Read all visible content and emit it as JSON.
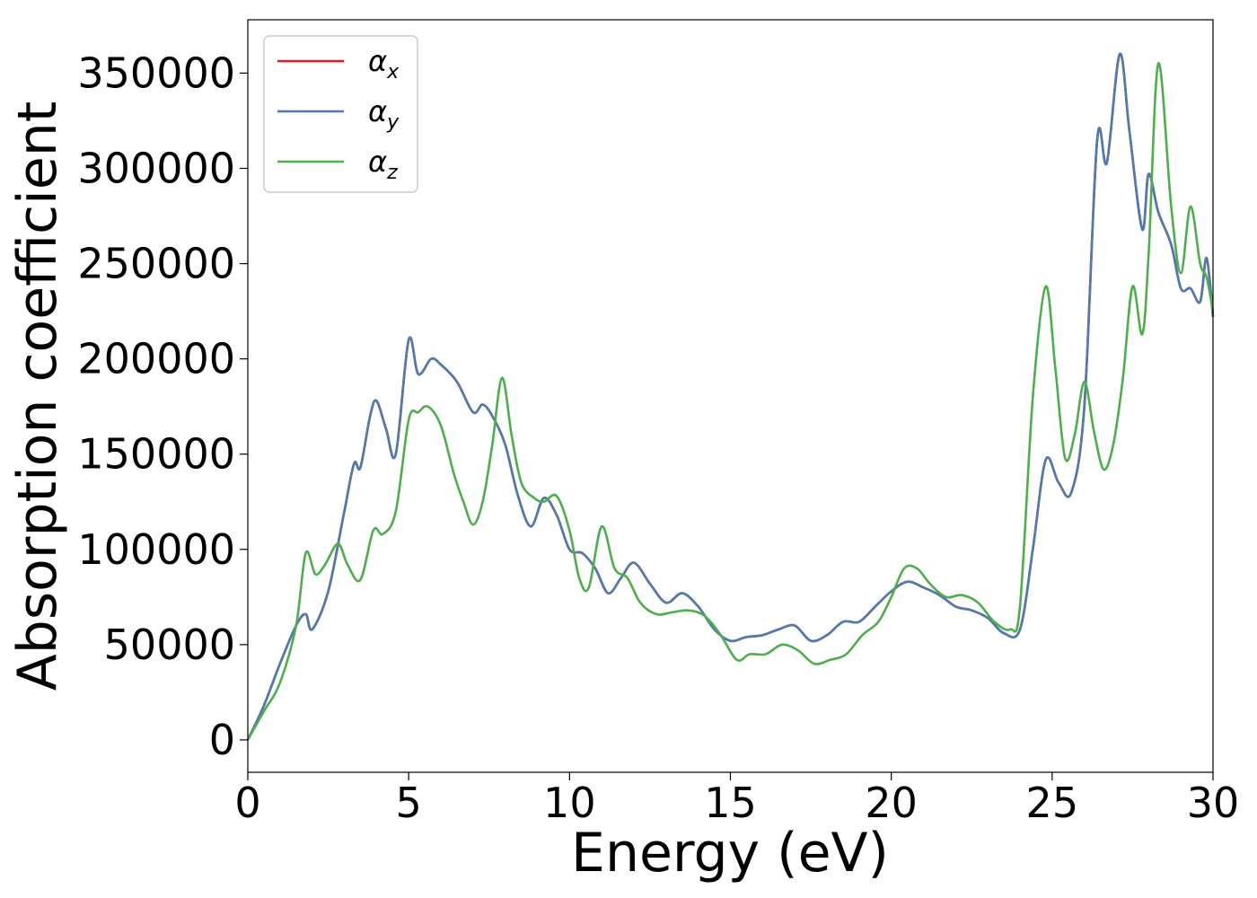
{
  "chart_data": {
    "type": "line",
    "xlabel": "Energy (eV)",
    "ylabel": "Absorption coefficient",
    "xlim": [
      0,
      30
    ],
    "ylim": [
      -17000,
      378000
    ],
    "x_ticks": [
      0,
      5,
      10,
      15,
      20,
      25,
      30
    ],
    "y_ticks": [
      0,
      50000,
      100000,
      150000,
      200000,
      250000,
      300000,
      350000
    ],
    "grid": false,
    "legend_position": "top-left",
    "series": [
      {
        "name": "αx",
        "legend_base": "α",
        "legend_sub": "x",
        "color": "#e41a1c",
        "x": [
          0,
          0.5,
          1.0,
          1.5,
          1.8,
          2.0,
          2.5,
          3.0,
          3.3,
          3.5,
          3.8,
          4.0,
          4.3,
          4.6,
          5.0,
          5.3,
          5.7,
          6.0,
          6.5,
          7.0,
          7.3,
          7.6,
          8.0,
          8.4,
          8.8,
          9.2,
          9.6,
          10.0,
          10.4,
          10.8,
          11.2,
          11.6,
          12.0,
          12.5,
          13.0,
          13.5,
          14.0,
          14.5,
          15.0,
          15.5,
          16.0,
          16.5,
          17.0,
          17.5,
          18.0,
          18.5,
          19.0,
          19.5,
          20.0,
          20.5,
          21.0,
          21.5,
          22.0,
          22.5,
          23.0,
          23.5,
          24.0,
          24.4,
          24.8,
          25.2,
          25.6,
          26.0,
          26.4,
          26.7,
          27.1,
          27.4,
          27.8,
          28.0,
          28.3,
          28.7,
          29.0,
          29.3,
          29.6,
          29.8,
          30.0
        ],
        "y": [
          0,
          18000,
          40000,
          60000,
          66000,
          58000,
          78000,
          120000,
          145000,
          143000,
          170000,
          178000,
          163000,
          150000,
          210000,
          192000,
          200000,
          197000,
          188000,
          172000,
          176000,
          170000,
          155000,
          128000,
          112000,
          127000,
          118000,
          100000,
          98000,
          90000,
          77000,
          85000,
          93000,
          82000,
          72000,
          77000,
          70000,
          58000,
          52000,
          54000,
          55000,
          58000,
          60000,
          52000,
          55000,
          62000,
          62000,
          70000,
          78000,
          83000,
          80000,
          76000,
          70000,
          68000,
          64000,
          56000,
          58000,
          100000,
          147000,
          135000,
          130000,
          175000,
          315000,
          303000,
          360000,
          320000,
          268000,
          297000,
          277000,
          260000,
          237000,
          237000,
          230000,
          253000,
          222000
        ]
      },
      {
        "name": "αy",
        "legend_base": "α",
        "legend_sub": "y",
        "color": "#4b7bb2",
        "x": [
          0,
          0.5,
          1.0,
          1.5,
          1.8,
          2.0,
          2.5,
          3.0,
          3.3,
          3.5,
          3.8,
          4.0,
          4.3,
          4.6,
          5.0,
          5.3,
          5.7,
          6.0,
          6.5,
          7.0,
          7.3,
          7.6,
          8.0,
          8.4,
          8.8,
          9.2,
          9.6,
          10.0,
          10.4,
          10.8,
          11.2,
          11.6,
          12.0,
          12.5,
          13.0,
          13.5,
          14.0,
          14.5,
          15.0,
          15.5,
          16.0,
          16.5,
          17.0,
          17.5,
          18.0,
          18.5,
          19.0,
          19.5,
          20.0,
          20.5,
          21.0,
          21.5,
          22.0,
          22.5,
          23.0,
          23.5,
          24.0,
          24.4,
          24.8,
          25.2,
          25.6,
          26.0,
          26.4,
          26.7,
          27.1,
          27.4,
          27.8,
          28.0,
          28.3,
          28.7,
          29.0,
          29.3,
          29.6,
          29.8,
          30.0
        ],
        "y": [
          0,
          18000,
          40000,
          60000,
          66000,
          58000,
          78000,
          120000,
          145000,
          143000,
          170000,
          178000,
          163000,
          150000,
          210000,
          192000,
          200000,
          197000,
          188000,
          172000,
          176000,
          170000,
          155000,
          128000,
          112000,
          127000,
          118000,
          100000,
          98000,
          90000,
          77000,
          85000,
          93000,
          82000,
          72000,
          77000,
          70000,
          58000,
          52000,
          54000,
          55000,
          58000,
          60000,
          52000,
          55000,
          62000,
          62000,
          70000,
          78000,
          83000,
          80000,
          76000,
          70000,
          68000,
          64000,
          56000,
          58000,
          100000,
          147000,
          135000,
          130000,
          175000,
          315000,
          303000,
          360000,
          320000,
          268000,
          297000,
          277000,
          260000,
          237000,
          237000,
          230000,
          253000,
          222000
        ]
      },
      {
        "name": "αz",
        "legend_base": "α",
        "legend_sub": "z",
        "color": "#4daf4a",
        "x": [
          0,
          0.5,
          1.0,
          1.5,
          1.8,
          2.1,
          2.4,
          2.8,
          3.1,
          3.5,
          3.9,
          4.2,
          4.6,
          5.0,
          5.3,
          5.6,
          6.0,
          6.4,
          6.7,
          7.0,
          7.3,
          7.6,
          7.9,
          8.2,
          8.5,
          8.9,
          9.2,
          9.6,
          10.0,
          10.3,
          10.6,
          11.0,
          11.4,
          11.8,
          12.2,
          12.7,
          13.2,
          13.7,
          14.2,
          14.7,
          15.2,
          15.6,
          16.1,
          16.6,
          17.1,
          17.6,
          18.1,
          18.6,
          19.1,
          19.6,
          20.0,
          20.4,
          20.8,
          21.2,
          21.7,
          22.2,
          22.7,
          23.2,
          23.7,
          24.0,
          24.4,
          24.8,
          25.1,
          25.4,
          25.7,
          26.0,
          26.3,
          26.6,
          26.9,
          27.2,
          27.5,
          27.8,
          28.0,
          28.3,
          28.7,
          29.0,
          29.3,
          29.6,
          29.8,
          30.0
        ],
        "y": [
          0,
          15000,
          30000,
          60000,
          98000,
          87000,
          92000,
          103000,
          92000,
          84000,
          110000,
          108000,
          120000,
          168000,
          172000,
          175000,
          165000,
          140000,
          125000,
          113000,
          125000,
          155000,
          190000,
          160000,
          135000,
          127000,
          125000,
          128000,
          110000,
          85000,
          80000,
          112000,
          90000,
          85000,
          72000,
          66000,
          67000,
          68000,
          65000,
          55000,
          42000,
          45000,
          45000,
          50000,
          47000,
          40000,
          42000,
          45000,
          55000,
          62000,
          75000,
          90000,
          90000,
          82000,
          75000,
          76000,
          72000,
          62000,
          58000,
          70000,
          180000,
          238000,
          195000,
          148000,
          160000,
          188000,
          162000,
          142000,
          155000,
          190000,
          238000,
          213000,
          255000,
          355000,
          280000,
          245000,
          280000,
          250000,
          243000,
          225000
        ]
      }
    ]
  }
}
